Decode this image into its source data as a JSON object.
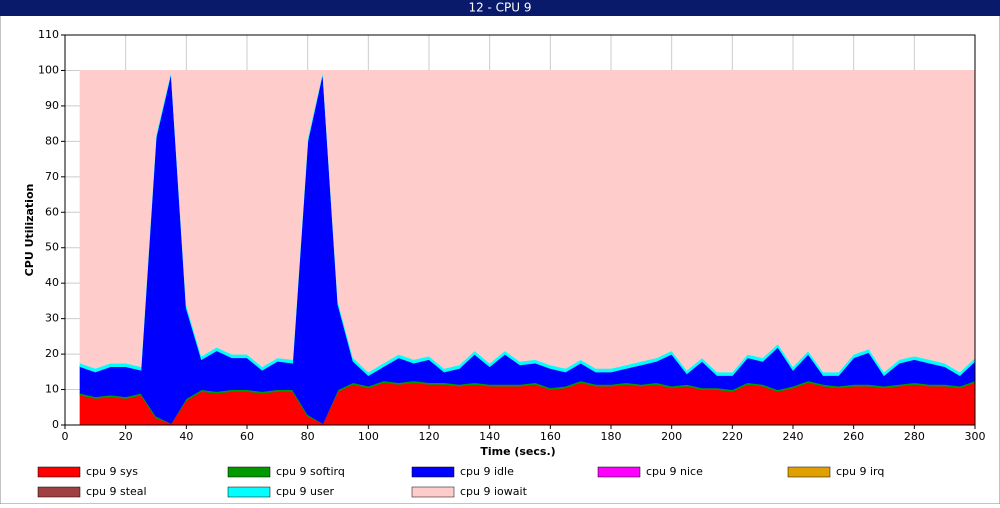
{
  "window_title": "12 - CPU 9",
  "chart_data": {
    "type": "stacked-area",
    "xlabel": "Time (secs.)",
    "ylabel": "CPU Utilization",
    "x": [
      5,
      10,
      15,
      20,
      25,
      30,
      35,
      40,
      45,
      50,
      55,
      60,
      65,
      70,
      75,
      80,
      85,
      90,
      95,
      100,
      105,
      110,
      115,
      120,
      125,
      130,
      135,
      140,
      145,
      150,
      155,
      160,
      165,
      170,
      175,
      180,
      185,
      190,
      195,
      200,
      205,
      210,
      215,
      220,
      225,
      230,
      235,
      240,
      245,
      250,
      255,
      260,
      265,
      270,
      275,
      280,
      285,
      290,
      295,
      300
    ],
    "xlim": [
      0,
      300
    ],
    "xticks": [
      0,
      20,
      40,
      60,
      80,
      100,
      120,
      140,
      160,
      180,
      200,
      220,
      240,
      260,
      280,
      300
    ],
    "ylim": [
      0,
      110
    ],
    "yticks": [
      0,
      10,
      20,
      30,
      40,
      50,
      60,
      70,
      80,
      90,
      100,
      110
    ],
    "grid": true,
    "series": [
      {
        "name": "cpu 9 sys",
        "color": "#ff0000",
        "values": [
          8.5,
          7.5,
          8,
          7.5,
          8.5,
          2,
          0.5,
          7,
          9.5,
          9,
          9.5,
          9.5,
          9,
          9.5,
          9.5,
          2.5,
          0.5,
          9.5,
          11.5,
          10.5,
          12,
          11.5,
          12,
          11.5,
          11.5,
          11,
          11.5,
          11,
          11,
          11,
          11.5,
          10,
          10.5,
          12,
          11,
          11,
          11.5,
          11,
          11.5,
          10.5,
          11,
          10,
          10,
          9.5,
          11.5,
          11,
          9.5,
          10.5,
          12,
          11,
          10.5,
          11,
          11,
          10.5,
          11,
          11.5,
          11,
          11,
          10.5,
          12
        ]
      },
      {
        "name": "cpu 9 softirq",
        "color": "#009900",
        "values": [
          0.5,
          0.5,
          0.5,
          0.5,
          0.5,
          0.5,
          0,
          0.5,
          0.5,
          0.5,
          0.5,
          0.5,
          0.5,
          0.5,
          0.5,
          0.5,
          0,
          0.5,
          0.5,
          0.5,
          0.5,
          0.5,
          0.5,
          0.5,
          0.5,
          0.5,
          0.5,
          0.5,
          0.5,
          0.5,
          0.5,
          0.5,
          0.5,
          0.5,
          0.5,
          0.5,
          0.5,
          0.5,
          0.5,
          0.5,
          0.5,
          0.5,
          0.5,
          0.5,
          0.5,
          0.5,
          0.5,
          0.5,
          0.5,
          0.5,
          0.5,
          0.5,
          0.5,
          0.5,
          0.5,
          0.5,
          0.5,
          0.5,
          0.5,
          0.5
        ]
      },
      {
        "name": "cpu 9 idle",
        "color": "#0000ff",
        "values": [
          7.5,
          7,
          8,
          8.5,
          6.5,
          78.5,
          99,
          25.5,
          8.5,
          11.5,
          9,
          9,
          6,
          8,
          7.5,
          77,
          99,
          24,
          6,
          3,
          4,
          7,
          5,
          6.5,
          3,
          4.5,
          8,
          5,
          8.5,
          5.5,
          5.5,
          5.5,
          4,
          5,
          3.5,
          3.5,
          4,
          5.5,
          6,
          9,
          3,
          7.5,
          3.5,
          4,
          7,
          6.5,
          12,
          4.5,
          7.5,
          2.5,
          3,
          7.5,
          9,
          3,
          6,
          6.5,
          6,
          5,
          3,
          5.5
        ]
      },
      {
        "name": "cpu 9 nice",
        "color": "#ff00ff",
        "values": [
          0,
          0,
          0,
          0,
          0,
          0,
          0,
          0,
          0,
          0,
          0,
          0,
          0,
          0,
          0,
          0,
          0,
          0,
          0,
          0,
          0,
          0,
          0,
          0,
          0,
          0,
          0,
          0,
          0,
          0,
          0,
          0,
          0,
          0,
          0,
          0,
          0,
          0,
          0,
          0,
          0,
          0,
          0,
          0,
          0,
          0,
          0,
          0,
          0,
          0,
          0,
          0,
          0,
          0,
          0,
          0,
          0,
          0,
          0,
          0
        ]
      },
      {
        "name": "cpu 9 irq",
        "color": "#e0a000",
        "values": [
          0,
          0,
          0,
          0,
          0,
          0,
          0,
          0,
          0,
          0,
          0,
          0,
          0,
          0,
          0,
          0,
          0,
          0,
          0,
          0,
          0,
          0,
          0,
          0,
          0,
          0,
          0,
          0,
          0,
          0,
          0,
          0,
          0,
          0,
          0,
          0,
          0,
          0,
          0,
          0,
          0,
          0,
          0,
          0,
          0,
          0,
          0,
          0,
          0,
          0,
          0,
          0,
          0,
          0,
          0,
          0,
          0,
          0,
          0,
          0
        ]
      },
      {
        "name": "cpu 9 steal",
        "color": "#a04040",
        "values": [
          0,
          0,
          0,
          0,
          0,
          0,
          0,
          0,
          0,
          0,
          0,
          0,
          0,
          0,
          0,
          0,
          0,
          0,
          0,
          0,
          0,
          0,
          0,
          0,
          0,
          0,
          0,
          0,
          0,
          0,
          0,
          0,
          0,
          0,
          0,
          0,
          0,
          0,
          0,
          0,
          0,
          0,
          0,
          0,
          0,
          0,
          0,
          0,
          0,
          0,
          0,
          0,
          0,
          0,
          0,
          0,
          0,
          0,
          0,
          0
        ]
      },
      {
        "name": "cpu 9 user",
        "color": "#00ffff",
        "values": [
          1,
          1,
          1,
          1,
          1,
          1,
          0.5,
          1,
          1,
          1,
          1,
          1,
          1,
          1,
          1,
          1,
          0.5,
          1,
          1,
          1,
          1,
          1,
          1,
          1,
          1,
          1,
          1,
          1,
          1,
          1,
          1,
          1,
          1,
          1,
          1,
          1,
          1,
          1,
          1,
          1,
          1,
          1,
          1,
          1,
          1,
          1,
          1,
          1,
          1,
          1,
          1,
          1,
          1,
          1,
          1,
          1,
          1,
          1,
          1,
          1
        ]
      },
      {
        "name": "cpu 9 iowait",
        "color": "#ffcccc",
        "values": [
          82.5,
          84,
          82.5,
          82.5,
          83.5,
          18,
          0,
          66,
          80.5,
          78,
          80,
          80,
          83.5,
          81,
          81.5,
          19,
          0,
          65,
          81,
          85,
          82.5,
          80,
          81.5,
          80.5,
          84,
          83,
          79,
          82.5,
          79,
          82,
          81.5,
          83,
          84,
          81.5,
          84,
          84,
          83,
          82,
          81,
          79,
          84.5,
          81,
          85,
          85,
          80,
          81,
          77,
          83.5,
          79,
          85,
          85,
          80,
          78.5,
          85,
          81.5,
          80.5,
          81.5,
          82.5,
          85,
          81
        ]
      }
    ]
  }
}
